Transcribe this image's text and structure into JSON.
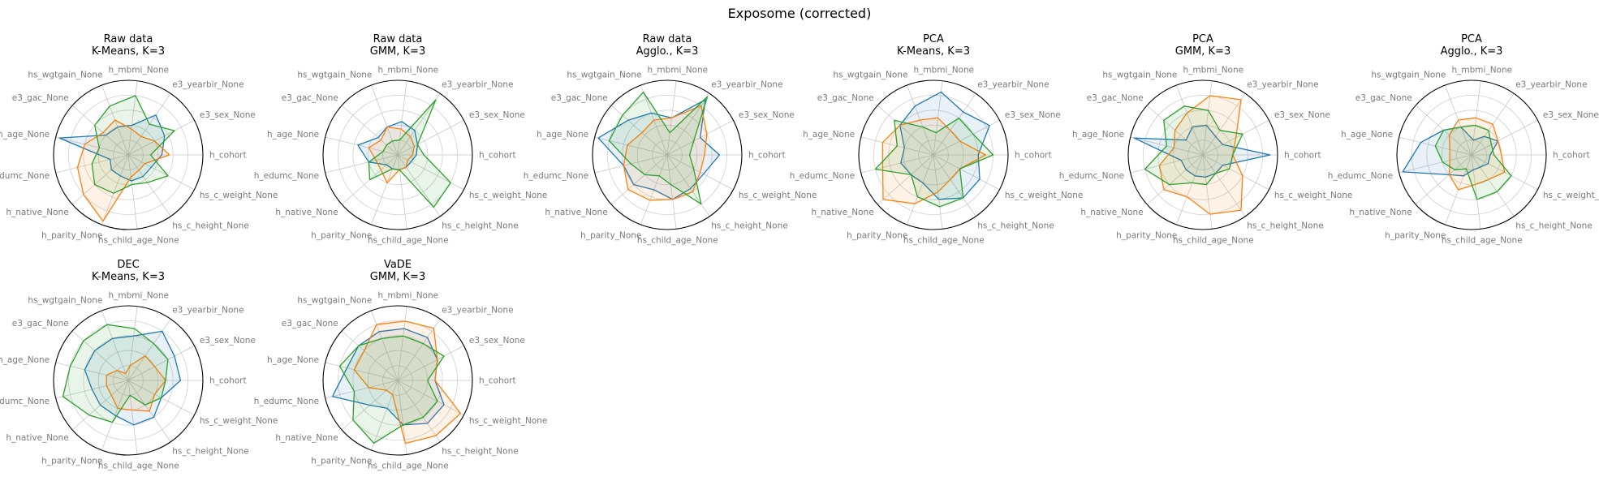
{
  "figure": {
    "title": "Exposome (corrected)"
  },
  "chart_data": [
    {
      "type": "radar",
      "title": [
        "Raw data",
        "K-Means, K=3"
      ],
      "axes": [
        "h_cohort",
        "e3_sex_None",
        "e3_yearbir_None",
        "h_mbmi_None",
        "hs_wgtgain_None",
        "e3_gac_None",
        "h_age_None",
        "h_edumc_None",
        "h_native_None",
        "h_parity_None",
        "hs_child_age_None",
        "hs_c_height_None",
        "hs_c_weight_None"
      ],
      "rlim": [
        0,
        1
      ],
      "series": [
        {
          "color": "#1f77b4",
          "values": [
            0.45,
            0.55,
            0.65,
            0.4,
            0.4,
            0.4,
            0.95,
            0.25,
            0.3,
            0.3,
            0.35,
            0.35,
            0.35
          ]
        },
        {
          "color": "#ff7f0e",
          "values": [
            0.55,
            0.4,
            0.3,
            0.35,
            0.5,
            0.45,
            0.6,
            0.7,
            0.8,
            0.95,
            0.3,
            0.25,
            0.25
          ]
        },
        {
          "color": "#2ca02c",
          "values": [
            0.3,
            0.7,
            0.5,
            0.8,
            0.7,
            0.6,
            0.4,
            0.5,
            0.6,
            0.55,
            0.4,
            0.45,
            0.6
          ]
        }
      ]
    },
    {
      "type": "radar",
      "title": [
        "Raw data",
        "GMM, K=3"
      ],
      "axes": [
        "h_cohort",
        "e3_sex_None",
        "e3_yearbir_None",
        "h_mbmi_None",
        "hs_wgtgain_None",
        "e3_gac_None",
        "h_age_None",
        "h_edumc_None",
        "h_native_None",
        "h_parity_None",
        "hs_child_age_None",
        "hs_c_height_None",
        "hs_c_weight_None"
      ],
      "rlim": [
        0,
        1
      ],
      "series": [
        {
          "color": "#1f77b4",
          "values": [
            0.25,
            0.3,
            0.4,
            0.45,
            0.4,
            0.35,
            0.55,
            0.4,
            0.2,
            0.2,
            0.2,
            0.2,
            0.2
          ]
        },
        {
          "color": "#ff7f0e",
          "values": [
            0.2,
            0.25,
            0.3,
            0.35,
            0.4,
            0.3,
            0.4,
            0.3,
            0.3,
            0.4,
            0.2,
            0.2,
            0.15
          ]
        },
        {
          "color": "#2ca02c",
          "values": [
            0.35,
            0.3,
            0.9,
            0.2,
            0.2,
            0.2,
            0.2,
            0.4,
            0.5,
            0.2,
            0.2,
            0.85,
            0.8
          ]
        }
      ]
    },
    {
      "type": "radar",
      "title": [
        "Raw data",
        "Agglo., K=3"
      ],
      "axes": [
        "h_cohort",
        "e3_sex_None",
        "e3_yearbir_None",
        "h_mbmi_None",
        "hs_wgtgain_None",
        "e3_gac_None",
        "h_age_None",
        "h_edumc_None",
        "h_native_None",
        "h_parity_None",
        "hs_child_age_None",
        "hs_c_height_None",
        "hs_c_weight_None"
      ],
      "rlim": [
        0,
        1
      ],
      "series": [
        {
          "color": "#1f77b4",
          "values": [
            0.7,
            0.5,
            0.9,
            0.5,
            0.6,
            0.7,
            0.95,
            0.6,
            0.6,
            0.5,
            0.6,
            0.55,
            0.55
          ]
        },
        {
          "color": "#ff7f0e",
          "values": [
            0.5,
            0.6,
            0.8,
            0.5,
            0.5,
            0.45,
            0.55,
            0.6,
            0.7,
            0.65,
            0.6,
            0.6,
            0.5
          ]
        },
        {
          "color": "#2ca02c",
          "values": [
            0.3,
            0.4,
            0.95,
            0.3,
            0.9,
            0.8,
            0.8,
            0.5,
            0.4,
            0.3,
            0.4,
            0.8,
            0.4
          ]
        }
      ]
    },
    {
      "type": "radar",
      "title": [
        "PCA",
        "K-Means, K=3"
      ],
      "axes": [
        "h_cohort",
        "e3_sex_None",
        "e3_yearbir_None",
        "h_mbmi_None",
        "hs_wgtgain_None",
        "e3_gac_None",
        "h_age_None",
        "h_edumc_None",
        "h_native_None",
        "h_parity_None",
        "hs_child_age_None",
        "hs_c_height_None",
        "hs_c_weight_None"
      ],
      "rlim": [
        0,
        1
      ],
      "series": [
        {
          "color": "#1f77b4",
          "values": [
            0.6,
            0.85,
            0.7,
            0.85,
            0.7,
            0.6,
            0.4,
            0.45,
            0.4,
            0.4,
            0.6,
            0.7,
            0.7
          ]
        },
        {
          "color": "#ff7f0e",
          "values": [
            0.7,
            0.4,
            0.4,
            0.5,
            0.5,
            0.6,
            0.7,
            0.7,
            0.9,
            0.7,
            0.5,
            0.4,
            0.4
          ]
        },
        {
          "color": "#2ca02c",
          "values": [
            0.8,
            0.6,
            0.6,
            0.3,
            0.4,
            0.7,
            0.5,
            0.8,
            0.4,
            0.6,
            0.7,
            0.7,
            0.4
          ]
        }
      ]
    },
    {
      "type": "radar",
      "title": [
        "PCA",
        "GMM, K=3"
      ],
      "axes": [
        "h_cohort",
        "e3_sex_None",
        "e3_yearbir_None",
        "h_mbmi_None",
        "hs_wgtgain_None",
        "e3_gac_None",
        "h_age_None",
        "h_edumc_None",
        "h_native_None",
        "h_parity_None",
        "hs_child_age_None",
        "hs_c_height_None",
        "hs_c_weight_None"
      ],
      "rlim": [
        0,
        1
      ],
      "series": [
        {
          "color": "#1f77b4",
          "values": [
            0.9,
            0.3,
            0.3,
            0.4,
            0.4,
            0.3,
            0.95,
            0.3,
            0.3,
            0.3,
            0.3,
            0.3,
            0.3
          ]
        },
        {
          "color": "#ff7f0e",
          "values": [
            0.4,
            0.5,
            0.9,
            0.8,
            0.6,
            0.5,
            0.4,
            0.6,
            0.7,
            0.6,
            0.8,
            0.9,
            0.6
          ]
        },
        {
          "color": "#2ca02c",
          "values": [
            0.4,
            0.6,
            0.4,
            0.6,
            0.7,
            0.7,
            0.5,
            0.8,
            0.6,
            0.4,
            0.4,
            0.3,
            0.4
          ]
        }
      ]
    },
    {
      "type": "radar",
      "title": [
        "PCA",
        "Agglo., K=3"
      ],
      "axes": [
        "h_cohort",
        "e3_sex_None",
        "e3_yearbir_None",
        "h_mbmi_None",
        "hs_wgtgain_None",
        "e3_gac_None",
        "h_age_None",
        "h_edumc_None",
        "h_native_None",
        "h_parity_None",
        "hs_child_age_None",
        "hs_c_height_None",
        "hs_c_weight_None"
      ],
      "rlim": [
        0,
        1
      ],
      "series": [
        {
          "color": "#1f77b4",
          "values": [
            0.25,
            0.4,
            0.3,
            0.2,
            0.4,
            0.5,
            0.7,
            0.95,
            0.4,
            0.3,
            0.2,
            0.2,
            0.25
          ]
        },
        {
          "color": "#ff7f0e",
          "values": [
            0.4,
            0.4,
            0.5,
            0.5,
            0.5,
            0.4,
            0.3,
            0.3,
            0.4,
            0.5,
            0.4,
            0.4,
            0.5
          ]
        },
        {
          "color": "#2ca02c",
          "values": [
            0.3,
            0.3,
            0.4,
            0.4,
            0.4,
            0.5,
            0.5,
            0.4,
            0.3,
            0.2,
            0.6,
            0.6,
            0.6
          ]
        }
      ]
    },
    {
      "type": "radar",
      "title": [
        "DEC",
        "K-Means, K=3"
      ],
      "axes": [
        "h_cohort",
        "e3_sex_None",
        "e3_yearbir_None",
        "h_mbmi_None",
        "hs_wgtgain_None",
        "e3_gac_None",
        "h_age_None",
        "h_edumc_None",
        "h_native_None",
        "h_parity_None",
        "hs_child_age_None",
        "hs_c_height_None",
        "hs_c_weight_None"
      ],
      "rlim": [
        0,
        1
      ],
      "series": [
        {
          "color": "#1f77b4",
          "values": [
            0.7,
            0.7,
            0.8,
            0.6,
            0.6,
            0.6,
            0.6,
            0.5,
            0.5,
            0.5,
            0.6,
            0.6,
            0.5
          ]
        },
        {
          "color": "#ff7f0e",
          "values": [
            0.5,
            0.4,
            0.4,
            0.2,
            0.1,
            0.2,
            0.3,
            0.3,
            0.3,
            0.4,
            0.4,
            0.5,
            0.4
          ]
        },
        {
          "color": "#2ca02c",
          "values": [
            0.5,
            0.6,
            0.6,
            0.7,
            0.8,
            0.8,
            0.8,
            0.9,
            0.7,
            0.6,
            0.2,
            0.4,
            0.5
          ]
        }
      ]
    },
    {
      "type": "radar",
      "title": [
        "VaDE",
        "GMM, K=3"
      ],
      "axes": [
        "h_cohort",
        "e3_sex_None",
        "e3_yearbir_None",
        "h_mbmi_None",
        "hs_wgtgain_None",
        "e3_gac_None",
        "h_age_None",
        "h_edumc_None",
        "h_native_None",
        "h_parity_None",
        "hs_child_age_None",
        "hs_c_height_None",
        "hs_c_weight_None"
      ],
      "rlim": [
        0,
        1
      ],
      "series": [
        {
          "color": "#1f77b4",
          "values": [
            0.5,
            0.6,
            0.7,
            0.7,
            0.7,
            0.7,
            0.7,
            0.9,
            0.5,
            0.4,
            0.6,
            0.7,
            0.7
          ]
        },
        {
          "color": "#ff7f0e",
          "values": [
            0.5,
            0.6,
            0.85,
            0.8,
            0.8,
            0.6,
            0.6,
            0.4,
            0.2,
            0.2,
            0.85,
            0.9,
            0.95
          ]
        },
        {
          "color": "#2ca02c",
          "values": [
            0.4,
            0.7,
            0.6,
            0.6,
            0.6,
            0.7,
            0.8,
            0.6,
            0.8,
            0.9,
            0.6,
            0.6,
            0.6
          ]
        }
      ]
    }
  ]
}
